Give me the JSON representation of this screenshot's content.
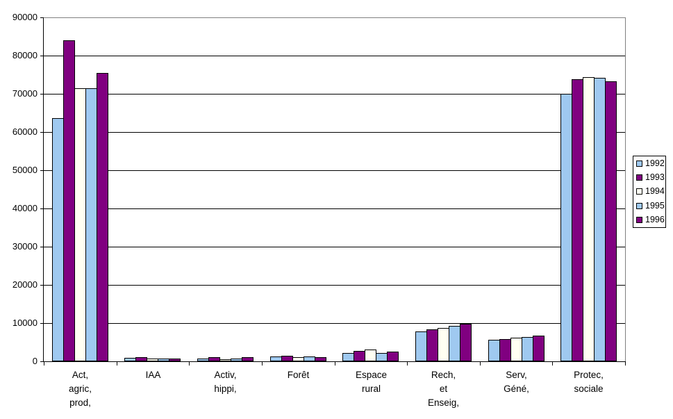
{
  "chart_data": {
    "type": "bar",
    "title": "",
    "xlabel": "",
    "ylabel": "",
    "categories": [
      "Act,\nagric,\nprod,",
      "IAA",
      "Activ,\nhippi,",
      "Forêt",
      "Espace\nrural",
      "Rech,\net\nEnseig,",
      "Serv,\nGéné,",
      "Protec,\nsociale"
    ],
    "series": [
      {
        "name": "1992",
        "color": "#9FC9F0",
        "values": [
          63600,
          900,
          700,
          1300,
          2200,
          7900,
          5600,
          70000
        ]
      },
      {
        "name": "1993",
        "color": "#800080",
        "values": [
          84000,
          1000,
          1000,
          1400,
          2800,
          8400,
          5900,
          73900
        ]
      },
      {
        "name": "1994",
        "color": "#FFFFF2",
        "values": [
          71500,
          800,
          600,
          1100,
          3000,
          8800,
          6100,
          74400
        ]
      },
      {
        "name": "1995",
        "color": "#9FC9F0",
        "values": [
          71500,
          700,
          800,
          1300,
          2100,
          9200,
          6300,
          74100
        ]
      },
      {
        "name": "1996",
        "color": "#800080",
        "values": [
          75500,
          700,
          1000,
          1000,
          2500,
          9900,
          6700,
          73200
        ]
      }
    ],
    "ylim": [
      0,
      90000
    ],
    "yticks": [
      0,
      10000,
      20000,
      30000,
      40000,
      50000,
      60000,
      70000,
      80000,
      90000
    ],
    "grid": true,
    "legend_position": "right",
    "colors": {
      "gridline": "#000000",
      "axis": "#000000",
      "plot_border": "#808080",
      "background": "#FFFFFF",
      "text": "#000000"
    }
  }
}
